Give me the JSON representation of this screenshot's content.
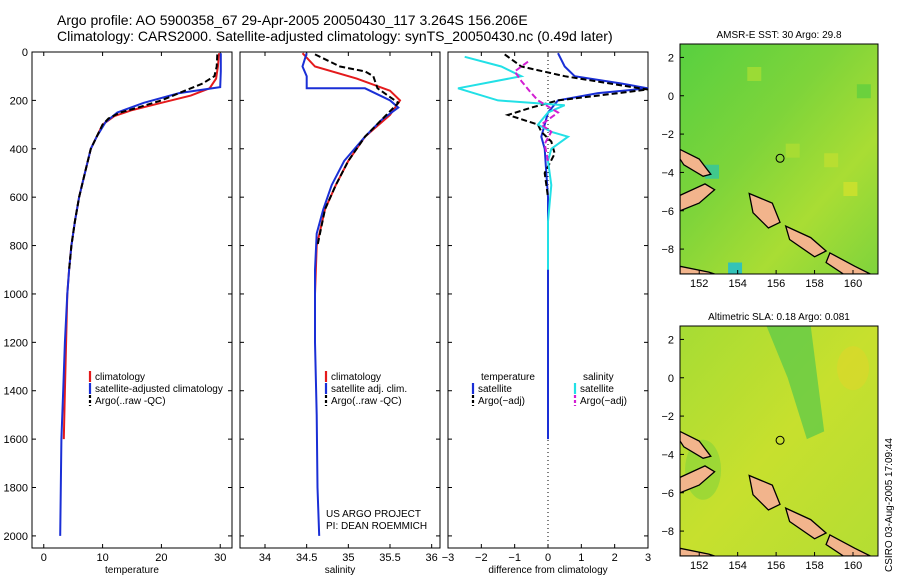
{
  "title_line1": "Argo profile: AO 5900358_67 29-Apr-2005 20050430_117 3.264S 156.206E",
  "title_line2": "Climatology: CARS2000. Satellite-adjusted climatology: synTS_20050430.nc (0.49d later)",
  "footer": "CSIRO 03-Aug-2005 17:09:44",
  "depth_ticks": [
    "0",
    "200",
    "400",
    "600",
    "800",
    "1000",
    "1200",
    "1400",
    "1600",
    "1800",
    "2000"
  ],
  "colors": {
    "climatology": "#e41a1c",
    "satellite": "#1a2fd6",
    "argo": "#000000",
    "salinity_sat": "#22e0e6",
    "salinity_argo": "#d21fd2"
  },
  "chart_data": [
    {
      "id": "temperature",
      "type": "line",
      "xlabel": "temperature",
      "ylabel": "",
      "xlim": [
        -2,
        32
      ],
      "ylim": [
        2050,
        0
      ],
      "xticks": [
        {
          "v": 0,
          "label": "0"
        },
        {
          "v": 10,
          "label": "10"
        },
        {
          "v": 20,
          "label": "20"
        },
        {
          "v": 30,
          "label": "30"
        }
      ],
      "legend": {
        "placement": "bottom-right",
        "entries": [
          "climatology",
          "satellite-adjusted climatology",
          "Argo(..raw -QC)"
        ]
      },
      "series": [
        {
          "name": "climatology",
          "color_key": "climatology",
          "dash": false,
          "points": [
            [
              29.8,
              5
            ],
            [
              29.6,
              60
            ],
            [
              29.3,
              110
            ],
            [
              28.2,
              150
            ],
            [
              25,
              180
            ],
            [
              20,
              210
            ],
            [
              15,
              240
            ],
            [
              12,
              265
            ],
            [
              10,
              300
            ],
            [
              9,
              350
            ],
            [
              8,
              400
            ],
            [
              7,
              500
            ],
            [
              6,
              600
            ],
            [
              5.3,
              700
            ],
            [
              4.7,
              800
            ],
            [
              4.3,
              900
            ],
            [
              4,
              1000
            ],
            [
              3.8,
              1200
            ],
            [
              3.6,
              1400
            ],
            [
              3.4,
              1600
            ]
          ]
        },
        {
          "name": "satellite-adjusted climatology",
          "color_key": "satellite",
          "dash": false,
          "points": [
            [
              30.1,
              5
            ],
            [
              30.1,
              80
            ],
            [
              30,
              145
            ],
            [
              23,
              170
            ],
            [
              17,
              210
            ],
            [
              12.5,
              250
            ],
            [
              10.5,
              290
            ],
            [
              9,
              350
            ],
            [
              8,
              400
            ],
            [
              7,
              500
            ],
            [
              6,
              600
            ],
            [
              5.3,
              700
            ],
            [
              4.7,
              800
            ],
            [
              4.3,
              900
            ],
            [
              4,
              1000
            ],
            [
              3.6,
              1200
            ],
            [
              3.3,
              1400
            ],
            [
              3,
              1600
            ],
            [
              2.9,
              1800
            ],
            [
              2.8,
              2000
            ]
          ]
        },
        {
          "name": "Argo(..raw -QC)",
          "color_key": "argo",
          "dash": true,
          "points": [
            [
              29.5,
              10
            ],
            [
              29.4,
              60
            ],
            [
              29,
              100
            ],
            [
              27,
              130
            ],
            [
              24,
              160
            ],
            [
              22,
              180
            ],
            [
              20,
              200
            ],
            [
              16,
              230
            ],
            [
              13,
              250
            ],
            [
              11,
              275
            ],
            [
              10,
              300
            ],
            [
              9,
              350
            ],
            [
              8,
              400
            ],
            [
              7,
              500
            ],
            [
              6,
              600
            ],
            [
              5.3,
              700
            ],
            [
              4.7,
              800
            ],
            [
              4.3,
              900
            ]
          ]
        }
      ]
    },
    {
      "id": "salinity",
      "type": "line",
      "xlabel": "salinity",
      "ylabel": "",
      "xlim": [
        33.7,
        36.1
      ],
      "ylim": [
        2050,
        0
      ],
      "xticks": [
        {
          "v": 34,
          "label": "34"
        },
        {
          "v": 34.5,
          "label": "34.5"
        },
        {
          "v": 35,
          "label": "35"
        },
        {
          "v": 35.5,
          "label": "35.5"
        },
        {
          "v": 36,
          "label": "36"
        }
      ],
      "legend": {
        "placement": "bottom-right",
        "entries": [
          "climatology",
          "satellite adj. clim.",
          "Argo(..raw -QC)"
        ]
      },
      "annotation": [
        "US ARGO PROJECT",
        "PI: DEAN ROEMMICH"
      ],
      "series": [
        {
          "name": "climatology",
          "color_key": "climatology",
          "dash": false,
          "points": [
            [
              34.45,
              5
            ],
            [
              34.6,
              60
            ],
            [
              35.1,
              110
            ],
            [
              35.5,
              160
            ],
            [
              35.62,
              200
            ],
            [
              35.5,
              260
            ],
            [
              35.2,
              350
            ],
            [
              35,
              450
            ],
            [
              34.85,
              550
            ],
            [
              34.72,
              650
            ],
            [
              34.62,
              800
            ],
            [
              34.6,
              1000
            ]
          ]
        },
        {
          "name": "satellite adj. clim.",
          "color_key": "satellite",
          "dash": false,
          "points": [
            [
              34.5,
              5
            ],
            [
              34.45,
              60
            ],
            [
              34.5,
              100
            ],
            [
              34.5,
              150
            ],
            [
              35.2,
              150
            ],
            [
              35.5,
              200
            ],
            [
              35.6,
              230
            ],
            [
              35.4,
              280
            ],
            [
              35.2,
              350
            ],
            [
              34.95,
              450
            ],
            [
              34.8,
              550
            ],
            [
              34.7,
              650
            ],
            [
              34.62,
              750
            ],
            [
              34.6,
              900
            ],
            [
              34.6,
              1200
            ],
            [
              34.62,
              1500
            ],
            [
              34.63,
              1800
            ],
            [
              34.65,
              2000
            ]
          ]
        },
        {
          "name": "Argo(..raw -QC)",
          "color_key": "argo",
          "dash": true,
          "points": [
            [
              34.6,
              10
            ],
            [
              34.9,
              60
            ],
            [
              35.2,
              80
            ],
            [
              35.3,
              100
            ],
            [
              35.35,
              150
            ],
            [
              35.6,
              210
            ],
            [
              35.4,
              280
            ],
            [
              35.2,
              350
            ],
            [
              35,
              450
            ],
            [
              34.85,
              550
            ],
            [
              34.72,
              650
            ],
            [
              34.63,
              800
            ]
          ]
        }
      ]
    },
    {
      "id": "difference",
      "type": "line",
      "xlabel": "difference from climatology",
      "ylabel": "",
      "xlim": [
        -3,
        3
      ],
      "ylim": [
        2050,
        0
      ],
      "xticks": [
        {
          "v": -3,
          "label": "−3"
        },
        {
          "v": -2,
          "label": "−2"
        },
        {
          "v": -1,
          "label": "−1"
        },
        {
          "v": 0,
          "label": "0"
        },
        {
          "v": 1,
          "label": "1"
        },
        {
          "v": 2,
          "label": "2"
        },
        {
          "v": 3,
          "label": "3"
        }
      ],
      "legend": {
        "placement": "bottom",
        "groups": [
          {
            "header": "temperature",
            "entries": [
              "satellite",
              "Argo(−adj)"
            ]
          },
          {
            "header": "salinity",
            "entries": [
              "satellite",
              "Argo(−adj)"
            ]
          }
        ]
      },
      "series": [
        {
          "name": "temperature satellite",
          "color_key": "satellite",
          "dash": false,
          "points": [
            [
              0.3,
              5
            ],
            [
              0.5,
              60
            ],
            [
              0.8,
              100
            ],
            [
              2.2,
              130
            ],
            [
              3,
              150
            ],
            [
              1.5,
              170
            ],
            [
              0.3,
              200
            ],
            [
              0,
              250
            ],
            [
              -0.1,
              300
            ],
            [
              -0.2,
              350
            ],
            [
              -0.1,
              400
            ],
            [
              -0.05,
              500
            ],
            [
              0,
              600
            ],
            [
              0,
              800
            ],
            [
              0,
              1000
            ],
            [
              0,
              1500
            ],
            [
              0,
              1600
            ]
          ]
        },
        {
          "name": "temperature Argo(-adj)",
          "color_key": "argo",
          "dash": true,
          "points": [
            [
              -1.3,
              10
            ],
            [
              -0.8,
              60
            ],
            [
              0.5,
              100
            ],
            [
              2.3,
              140
            ],
            [
              3,
              155
            ],
            [
              1.5,
              180
            ],
            [
              0.3,
              200
            ],
            [
              -0.5,
              230
            ],
            [
              -1.2,
              260
            ],
            [
              -0.3,
              300
            ],
            [
              -0.2,
              330
            ],
            [
              0.1,
              370
            ],
            [
              0.2,
              420
            ],
            [
              -0.1,
              500
            ],
            [
              0,
              600
            ]
          ]
        },
        {
          "name": "salinity satellite",
          "color_key": "salinity_sat",
          "dash": false,
          "points": [
            [
              -2.5,
              20
            ],
            [
              -1.4,
              60
            ],
            [
              -0.8,
              100
            ],
            [
              -2.7,
              150
            ],
            [
              -1.5,
              200
            ],
            [
              0.5,
              220
            ],
            [
              0,
              250
            ],
            [
              -0.3,
              300
            ],
            [
              0.1,
              330
            ],
            [
              0.6,
              350
            ],
            [
              0.1,
              400
            ],
            [
              0,
              450
            ],
            [
              0.1,
              550
            ],
            [
              0,
              700
            ],
            [
              0,
              900
            ]
          ]
        },
        {
          "name": "salinity Argo(-adj)",
          "color_key": "salinity_argo",
          "dash": true,
          "points": [
            [
              -0.6,
              40
            ],
            [
              -1,
              80
            ],
            [
              -0.8,
              120
            ],
            [
              -0.5,
              170
            ],
            [
              -0.3,
              200
            ],
            [
              0.3,
              250
            ],
            [
              -0.2,
              300
            ],
            [
              0.1,
              330
            ],
            [
              -0.1,
              380
            ],
            [
              0,
              450
            ]
          ]
        }
      ]
    }
  ],
  "maps": [
    {
      "id": "sst",
      "title": "AMSR-E SST: 30 Argo: 29.8",
      "xticks": [
        "152",
        "154",
        "156",
        "158",
        "160"
      ],
      "yticks": [
        "2",
        "0",
        "−2",
        "−4",
        "−6",
        "−8"
      ]
    },
    {
      "id": "sla",
      "title": "Altimetric SLA: 0.18 Argo: 0.081",
      "xticks": [
        "152",
        "154",
        "156",
        "158",
        "160"
      ],
      "yticks": [
        "2",
        "0",
        "−2",
        "−4",
        "−6",
        "−8"
      ]
    }
  ]
}
